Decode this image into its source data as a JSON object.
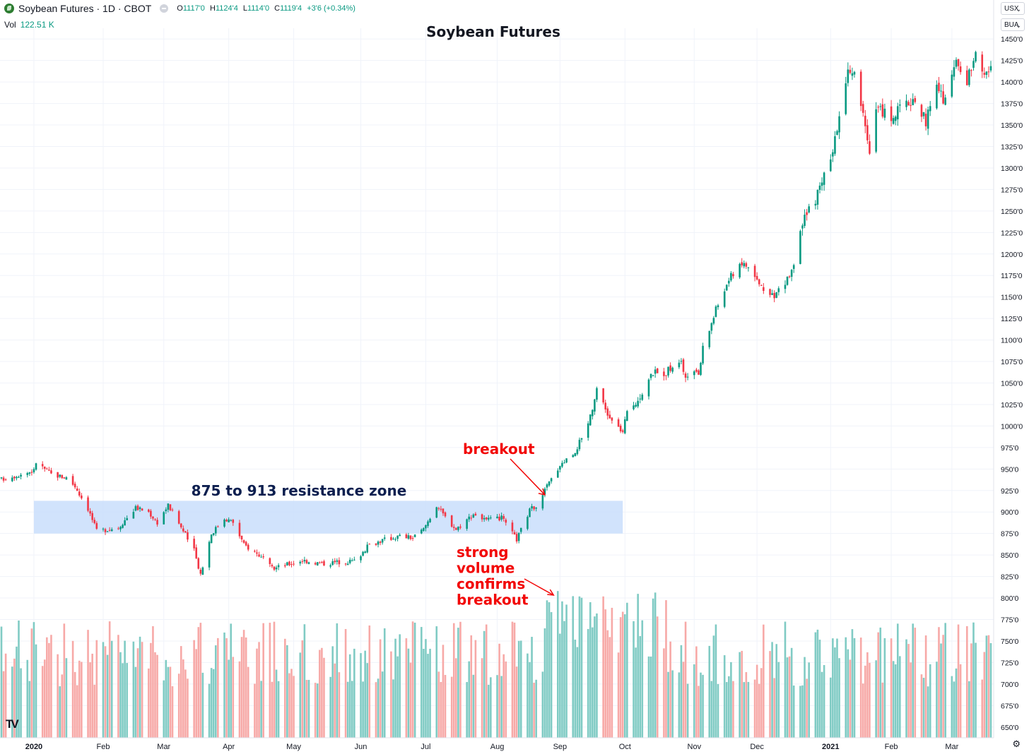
{
  "header": {
    "symbol_title": "Soybean Futures · 1D · CBOT",
    "ohlc": {
      "open_label": "O",
      "open": "1117'0",
      "high_label": "H",
      "high": "1124'4",
      "low_label": "L",
      "low": "1114'0",
      "close_label": "C",
      "close": "1119'4",
      "change": "+3'6 (+0.34%)"
    }
  },
  "volume_legend": {
    "label": "Vol",
    "value": "122.51 K"
  },
  "controls": {
    "collapse_icon": "chevron-up-icon",
    "currency": "USX",
    "unit": "BUA",
    "settings_icon": "gear-icon",
    "logo": "tradingview-logo-icon"
  },
  "colors": {
    "up": "#089981",
    "down": "#f23645",
    "vol_up": "#80cbc4",
    "vol_down": "#f7a9a7",
    "zone": "#c9defb",
    "annotation": "#f20707",
    "zone_label": "#0d1f4f"
  },
  "chart_data": {
    "type": "candlestick",
    "title": "Soybean Futures",
    "ylim": [
      637.5,
      1462.5
    ],
    "ytick_labels": [
      "650'0",
      "675'0",
      "700'0",
      "725'0",
      "750'0",
      "775'0",
      "800'0",
      "825'0",
      "850'0",
      "875'0",
      "900'0",
      "925'0",
      "950'0",
      "975'0",
      "1000'0",
      "1025'0",
      "1050'0",
      "1075'0",
      "1100'0",
      "1125'0",
      "1150'0",
      "1175'0",
      "1200'0",
      "1225'0",
      "1250'0",
      "1275'0",
      "1300'0",
      "1325'0",
      "1350'0",
      "1375'0",
      "1400'0",
      "1425'0",
      "1450'0"
    ],
    "x_tick_labels": [
      "2020",
      "Feb",
      "Mar",
      "Apr",
      "May",
      "Jun",
      "Jul",
      "Aug",
      "Sep",
      "Oct",
      "Nov",
      "Dec",
      "2021",
      "Feb",
      "Mar"
    ],
    "series": [
      {
        "name": "Price",
        "type": "candlestick"
      },
      {
        "name": "Volume",
        "type": "bar"
      }
    ],
    "price_path": [
      {
        "date": "2019-12-18",
        "close": 938
      },
      {
        "date": "2020-01-02",
        "close": 948
      },
      {
        "date": "2020-01-03",
        "close": 958
      },
      {
        "date": "2020-01-10",
        "close": 944
      },
      {
        "date": "2020-01-17",
        "close": 940
      },
      {
        "date": "2020-01-21",
        "close": 930
      },
      {
        "date": "2020-01-27",
        "close": 904
      },
      {
        "date": "2020-01-31",
        "close": 878
      },
      {
        "date": "2020-02-10",
        "close": 882
      },
      {
        "date": "2020-02-18",
        "close": 905
      },
      {
        "date": "2020-02-24",
        "close": 900
      },
      {
        "date": "2020-02-28",
        "close": 888
      },
      {
        "date": "2020-03-04",
        "close": 908
      },
      {
        "date": "2020-03-09",
        "close": 887
      },
      {
        "date": "2020-03-16",
        "close": 855
      },
      {
        "date": "2020-03-19",
        "close": 828
      },
      {
        "date": "2020-03-24",
        "close": 875
      },
      {
        "date": "2020-03-30",
        "close": 893
      },
      {
        "date": "2020-04-03",
        "close": 888
      },
      {
        "date": "2020-04-08",
        "close": 862
      },
      {
        "date": "2020-04-15",
        "close": 850
      },
      {
        "date": "2020-04-21",
        "close": 834
      },
      {
        "date": "2020-05-05",
        "close": 844
      },
      {
        "date": "2020-05-14",
        "close": 840
      },
      {
        "date": "2020-05-22",
        "close": 842
      },
      {
        "date": "2020-05-29",
        "close": 843
      },
      {
        "date": "2020-06-05",
        "close": 862
      },
      {
        "date": "2020-06-12",
        "close": 868
      },
      {
        "date": "2020-06-19",
        "close": 872
      },
      {
        "date": "2020-06-25",
        "close": 870
      },
      {
        "date": "2020-06-30",
        "close": 880
      },
      {
        "date": "2020-07-06",
        "close": 908
      },
      {
        "date": "2020-07-10",
        "close": 894
      },
      {
        "date": "2020-07-15",
        "close": 880
      },
      {
        "date": "2020-07-23",
        "close": 898
      },
      {
        "date": "2020-07-29",
        "close": 890
      },
      {
        "date": "2020-08-05",
        "close": 893
      },
      {
        "date": "2020-08-12",
        "close": 868
      },
      {
        "date": "2020-08-18",
        "close": 902
      },
      {
        "date": "2020-08-21",
        "close": 908
      },
      {
        "date": "2020-08-26",
        "close": 930
      },
      {
        "date": "2020-09-01",
        "close": 955
      },
      {
        "date": "2020-09-08",
        "close": 970
      },
      {
        "date": "2020-09-14",
        "close": 1005
      },
      {
        "date": "2020-09-18",
        "close": 1040
      },
      {
        "date": "2020-09-24",
        "close": 1008
      },
      {
        "date": "2020-09-30",
        "close": 993
      },
      {
        "date": "2020-10-02",
        "close": 1015
      },
      {
        "date": "2020-10-08",
        "close": 1035
      },
      {
        "date": "2020-10-14",
        "close": 1062
      },
      {
        "date": "2020-10-20",
        "close": 1062
      },
      {
        "date": "2020-10-26",
        "close": 1078
      },
      {
        "date": "2020-10-29",
        "close": 1058
      },
      {
        "date": "2020-11-04",
        "close": 1060
      },
      {
        "date": "2020-11-06",
        "close": 1090
      },
      {
        "date": "2020-11-12",
        "close": 1135
      },
      {
        "date": "2020-11-18",
        "close": 1170
      },
      {
        "date": "2020-11-23",
        "close": 1190
      },
      {
        "date": "2020-11-27",
        "close": 1185
      },
      {
        "date": "2020-12-02",
        "close": 1165
      },
      {
        "date": "2020-12-08",
        "close": 1150
      },
      {
        "date": "2020-12-14",
        "close": 1165
      },
      {
        "date": "2020-12-18",
        "close": 1190
      },
      {
        "date": "2020-12-23",
        "close": 1240
      },
      {
        "date": "2020-12-30",
        "close": 1275
      },
      {
        "date": "2021-01-05",
        "close": 1315
      },
      {
        "date": "2021-01-08",
        "close": 1360
      },
      {
        "date": "2021-01-12",
        "close": 1420
      },
      {
        "date": "2021-01-14",
        "close": 1415
      },
      {
        "date": "2021-01-20",
        "close": 1355
      },
      {
        "date": "2021-01-22",
        "close": 1310
      },
      {
        "date": "2021-01-25",
        "close": 1370
      },
      {
        "date": "2021-02-01",
        "close": 1360
      },
      {
        "date": "2021-02-08",
        "close": 1375
      },
      {
        "date": "2021-02-12",
        "close": 1380
      },
      {
        "date": "2021-02-17",
        "close": 1355
      },
      {
        "date": "2021-02-22",
        "close": 1395
      },
      {
        "date": "2021-02-26",
        "close": 1375
      },
      {
        "date": "2021-03-03",
        "close": 1425
      },
      {
        "date": "2021-03-08",
        "close": 1400
      },
      {
        "date": "2021-03-12",
        "close": 1440
      },
      {
        "date": "2021-03-16",
        "close": 1412
      },
      {
        "date": "2021-03-19",
        "close": 1415
      }
    ],
    "volume_range": [
      637.5,
      800
    ],
    "annotations": [
      {
        "text": "875 to 913 resistance zone",
        "type": "zone",
        "from_date": "2020-01-02",
        "to_date": "2020-09-30",
        "low": 875,
        "high": 913
      },
      {
        "text": "breakout",
        "type": "arrow",
        "date": "2020-08-25",
        "price": 920
      },
      {
        "text": "strong\nvolume\nconfirms\nbreakout",
        "type": "arrow",
        "date": "2020-08-31",
        "target": "volume"
      }
    ]
  }
}
